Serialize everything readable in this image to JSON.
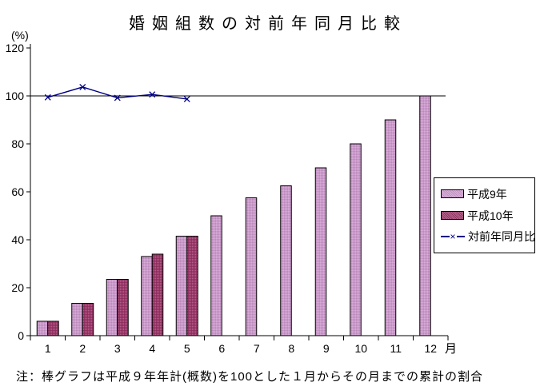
{
  "title": "婚姻組数の対前年同月比較",
  "note": "注：棒グラフは平成９年年計(概数)を100とした１月からその月までの累計の割合",
  "axes": {
    "y_unit_label": "(%)",
    "x_unit_label": "月",
    "y_ticks": [
      0,
      20,
      40,
      60,
      80,
      100,
      120
    ]
  },
  "legend": {
    "marker_glyph": "×",
    "items": [
      {
        "label": "平成9年",
        "type": "bar",
        "color": "#cc99cc"
      },
      {
        "label": "平成10年",
        "type": "bar",
        "color": "#993366"
      },
      {
        "label": "対前年同月比",
        "type": "line",
        "color": "#000080"
      }
    ]
  },
  "chart_data": {
    "type": "bar",
    "title": "婚姻組数の対前年同月比較",
    "xlabel": "月",
    "ylabel": "(%)",
    "categories": [
      "1",
      "2",
      "3",
      "4",
      "5",
      "6",
      "7",
      "8",
      "9",
      "10",
      "11",
      "12"
    ],
    "series": [
      {
        "name": "平成9年",
        "type": "bar",
        "color": "#cc99cc",
        "values": [
          6,
          13.5,
          23.5,
          33,
          41.5,
          50,
          57.5,
          62.5,
          70,
          80,
          90,
          100
        ]
      },
      {
        "name": "平成10年",
        "type": "bar",
        "color": "#993366",
        "values": [
          6,
          13.5,
          23.5,
          34,
          41.5,
          null,
          null,
          null,
          null,
          null,
          null,
          null
        ]
      },
      {
        "name": "対前年同月比",
        "type": "line",
        "marker": "x",
        "color": "#000080",
        "values": [
          99.4,
          103.7,
          99.2,
          100.6,
          98.7,
          null,
          null,
          null,
          null,
          null,
          null,
          null
        ]
      }
    ],
    "ylim": [
      0,
      122
    ],
    "reference_line": 100,
    "grid": false,
    "legend_position": "right"
  }
}
